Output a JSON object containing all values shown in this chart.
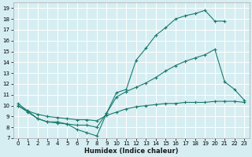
{
  "xlabel": "Humidex (Indice chaleur)",
  "bg_color": "#d6eef2",
  "grid_color": "#ffffff",
  "line_color": "#1a7a6e",
  "xlim": [
    -0.5,
    23.5
  ],
  "ylim": [
    7,
    19.5
  ],
  "xticks": [
    0,
    1,
    2,
    3,
    4,
    5,
    6,
    7,
    8,
    9,
    10,
    11,
    12,
    13,
    14,
    15,
    16,
    17,
    18,
    19,
    20,
    21,
    22,
    23
  ],
  "yticks": [
    7,
    8,
    9,
    10,
    11,
    12,
    13,
    14,
    15,
    16,
    17,
    18,
    19
  ],
  "line1_x": [
    0,
    1,
    2,
    3,
    4,
    5,
    6,
    7,
    8,
    9,
    10,
    11,
    12,
    13,
    14,
    15,
    16,
    17,
    18,
    19,
    20,
    21
  ],
  "line1_y": [
    10.2,
    9.5,
    8.8,
    8.5,
    8.5,
    8.3,
    7.8,
    7.5,
    7.2,
    9.3,
    11.2,
    11.5,
    14.2,
    15.3,
    16.5,
    17.2,
    18.0,
    18.3,
    18.5,
    18.8,
    17.8,
    17.8
  ],
  "line2_x": [
    0,
    1,
    2,
    3,
    4,
    5,
    6,
    7,
    8,
    9,
    10,
    11,
    12,
    13,
    14,
    15,
    16,
    17,
    18,
    19,
    20,
    21,
    22,
    23
  ],
  "line2_y": [
    10.0,
    9.4,
    8.8,
    8.5,
    8.4,
    8.3,
    8.2,
    8.2,
    8.0,
    9.3,
    10.8,
    11.3,
    11.7,
    12.1,
    12.6,
    13.2,
    13.7,
    14.1,
    14.4,
    14.7,
    15.2,
    12.2,
    11.5,
    10.5
  ],
  "line3_x": [
    0,
    1,
    2,
    3,
    4,
    5,
    6,
    7,
    8,
    9,
    10,
    11,
    12,
    13,
    14,
    15,
    16,
    17,
    18,
    19,
    20,
    21,
    22,
    23
  ],
  "line3_y": [
    10.0,
    9.5,
    9.2,
    9.0,
    8.9,
    8.8,
    8.7,
    8.7,
    8.6,
    9.1,
    9.4,
    9.7,
    9.9,
    10.0,
    10.1,
    10.2,
    10.2,
    10.3,
    10.3,
    10.3,
    10.4,
    10.4,
    10.4,
    10.3
  ]
}
